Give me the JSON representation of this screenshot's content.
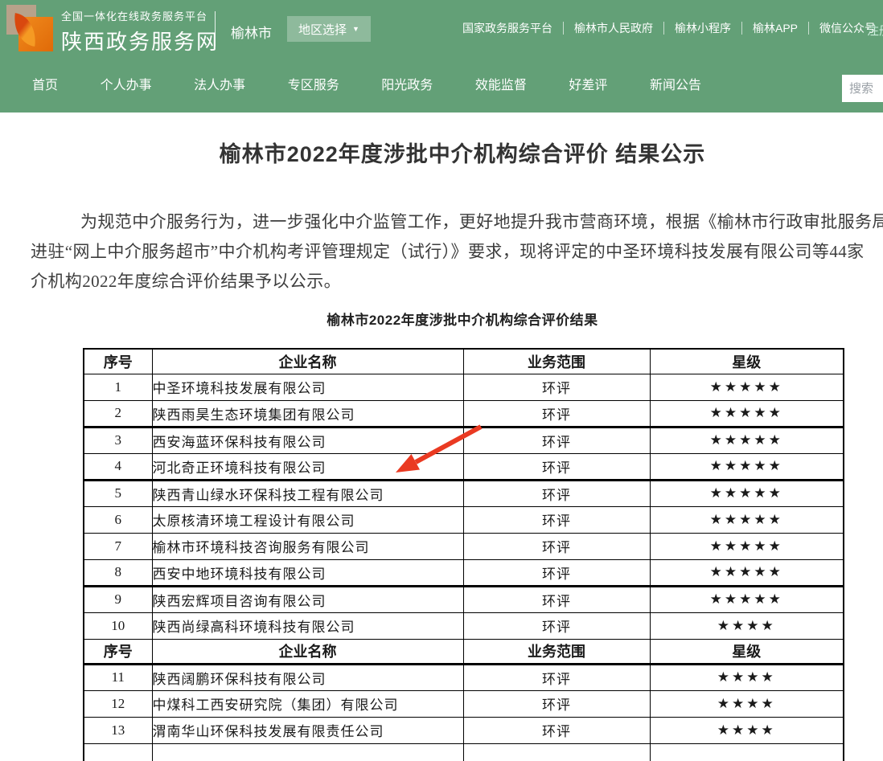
{
  "header": {
    "platform_small": "全国一体化在线政务服务平台",
    "site_name": "陕西政务服务网",
    "city": "榆林市",
    "region_selector": "地区选择",
    "top_links": [
      "国家政务服务平台",
      "榆林市人民政府",
      "榆林小程序",
      "榆林APP",
      "微信公众号"
    ],
    "register_label": "注册",
    "nav_items": [
      "首页",
      "个人办事",
      "法人办事",
      "专区服务",
      "阳光政务",
      "效能监督",
      "好差评",
      "新闻公告"
    ],
    "search_placeholder": "搜索"
  },
  "article": {
    "title": "榆林市2022年度涉批中介机构综合评价 结果公示",
    "paragraph_lines": [
      "为规范中介服务行为，进一步强化中介监管工作，更好地提升我市营商环境，根据《榆林市行政审批服务局关",
      "进驻“网上中介服务超市”中介机构考评管理规定（试行）》要求，现将评定的中圣环境科技发展有限公司等44家",
      "介机构2022年度综合评价结果予以公示。"
    ],
    "table_caption": "榆林市2022年度涉批中介机构综合评价结果"
  },
  "table": {
    "headers": [
      "序号",
      "企业名称",
      "业务范围",
      "星级"
    ],
    "star_char": "★",
    "rows": [
      {
        "no": "1",
        "name": "中圣环境科技发展有限公司",
        "scope": "环评",
        "stars": 5
      },
      {
        "no": "2",
        "name": "陕西雨昊生态环境集团有限公司",
        "scope": "环评",
        "stars": 5,
        "thick_bottom": true
      },
      {
        "no": "3",
        "name": "西安海蓝环保科技有限公司",
        "scope": "环评",
        "stars": 5
      },
      {
        "no": "4",
        "name": "河北奇正环境科技有限公司",
        "scope": "环评",
        "stars": 5,
        "thick_bottom": true
      },
      {
        "no": "5",
        "name": "陕西青山绿水环保科技工程有限公司",
        "scope": "环评",
        "stars": 5
      },
      {
        "no": "6",
        "name": "太原核清环境工程设计有限公司",
        "scope": "环评",
        "stars": 5
      },
      {
        "no": "7",
        "name": "榆林市环境科技咨询服务有限公司",
        "scope": "环评",
        "stars": 5
      },
      {
        "no": "8",
        "name": "西安中地环境科技有限公司",
        "scope": "环评",
        "stars": 5,
        "thick_bottom": true
      },
      {
        "no": "9",
        "name": "陕西宏辉项目咨询有限公司",
        "scope": "环评",
        "stars": 5
      },
      {
        "no": "10",
        "name": "陕西尚绿高科环境科技有限公司",
        "scope": "环评",
        "stars": 4
      },
      {
        "header_repeat": true,
        "thick_bottom": true
      },
      {
        "no": "11",
        "name": "陕西阔鹏环保科技有限公司",
        "scope": "环评",
        "stars": 4
      },
      {
        "no": "12",
        "name": "中煤科工西安研究院（集团）有限公司",
        "scope": "环评",
        "stars": 4
      },
      {
        "no": "13",
        "name": "渭南华山环保科技发展有限责任公司",
        "scope": "环评",
        "stars": 4
      },
      {
        "partial": true
      }
    ]
  },
  "annotation": {
    "arrow_color": "#ea3a22"
  },
  "colors": {
    "header_green": "#63a077",
    "region_btn_bg": "rgba(255,255,255,0.28)",
    "register_text": "#cdeedd",
    "star_black": "#000000",
    "text_dark": "#3d3d3d"
  }
}
